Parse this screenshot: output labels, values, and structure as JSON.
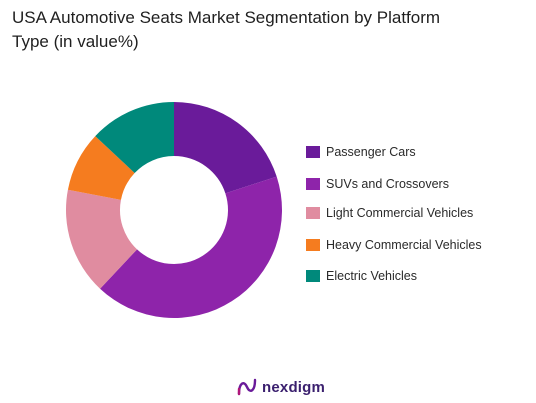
{
  "page_title": "USA Automotive Seats Market Segmentation by Platform\n Type (in value%)",
  "chart_data": {
    "type": "pie",
    "title": "USA Automotive Seats Market Segmentation by Platform\n Type (in value%)",
    "categories": [
      "Passenger Cars",
      "SUVs and Crossovers",
      "Light Commercial Vehicles",
      "Heavy Commercial Vehicles",
      "Electric Vehicles"
    ],
    "values": [
      20,
      42,
      16,
      9,
      13
    ],
    "colors": [
      "#6a1b9a",
      "#8e24aa",
      "#e08ca0",
      "#f57c1f",
      "#00897b"
    ],
    "donut": true,
    "legend": "right"
  },
  "legend": {
    "items": [
      {
        "label": "Passenger Cars",
        "color": "#6a1b9a"
      },
      {
        "label": "SUVs and Crossovers",
        "color": "#8e24aa"
      },
      {
        "label": "Light Commercial Vehicles",
        "color": "#e08ca0"
      },
      {
        "label": "Heavy Commercial Vehicles",
        "color": "#f57c1f"
      },
      {
        "label": "Electric Vehicles",
        "color": "#00897b"
      }
    ]
  },
  "footer": {
    "brand": "nexdigm",
    "logo_icon": "nexdigm-logo-icon"
  }
}
